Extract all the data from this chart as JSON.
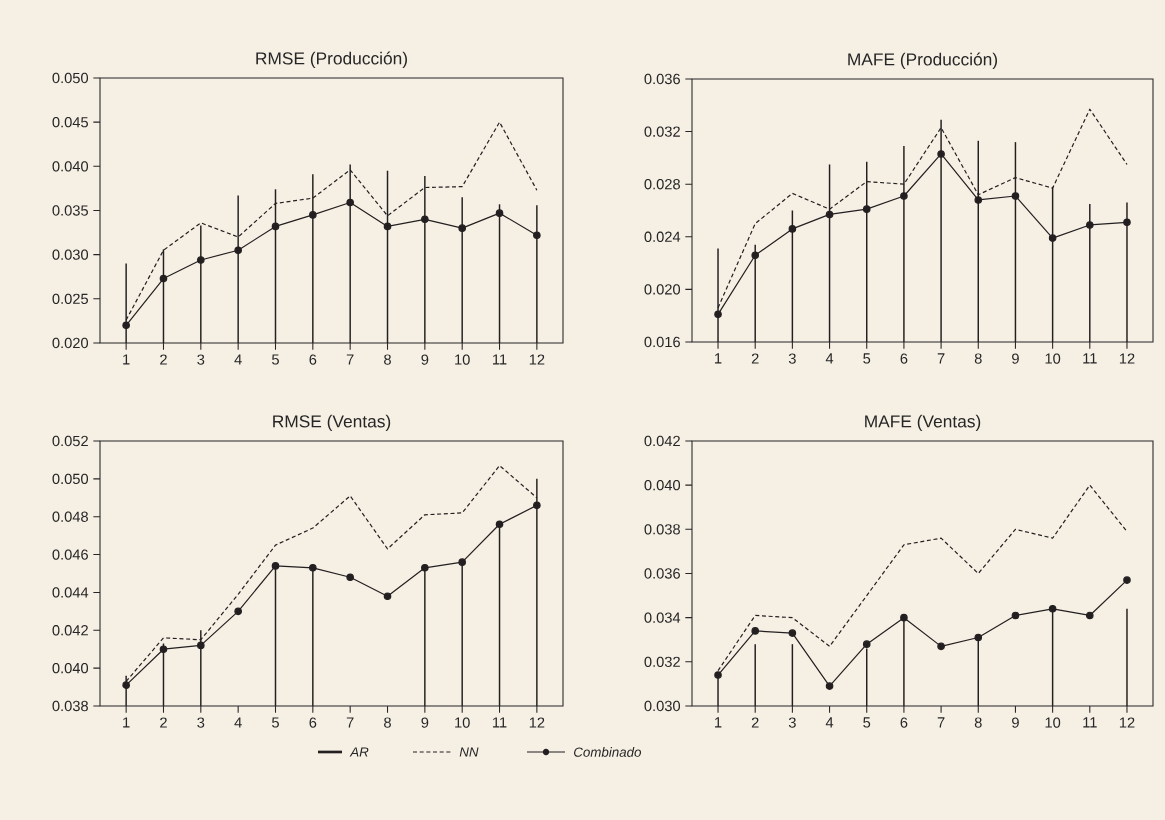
{
  "chart_data": [
    {
      "type": "line",
      "title": "RMSE (Producción)",
      "categories": [
        "1",
        "2",
        "3",
        "4",
        "5",
        "6",
        "7",
        "8",
        "9",
        "10",
        "11",
        "12"
      ],
      "ylim": [
        0.02,
        0.05
      ],
      "yticks": [
        {
          "value": 0.02,
          "label": "0.020"
        },
        {
          "value": 0.025,
          "label": "0.025"
        },
        {
          "value": 0.03,
          "label": "0.030"
        },
        {
          "value": 0.035,
          "label": "0.035"
        },
        {
          "value": 0.04,
          "label": "0.040"
        },
        {
          "value": 0.045,
          "label": "0.045"
        },
        {
          "value": 0.05,
          "label": "0.050"
        }
      ],
      "legend": "bottom",
      "series": [
        {
          "name": "AR",
          "type": "bar",
          "color": "#231f20",
          "values": [
            0.029,
            0.0306,
            0.0333,
            0.0367,
            0.0374,
            0.0391,
            0.0402,
            0.0395,
            0.0389,
            0.0365,
            0.0357,
            0.0356
          ]
        },
        {
          "name": "NN",
          "line_style": "dashed",
          "color": "#231f20",
          "values": [
            0.0226,
            0.0305,
            0.0336,
            0.032,
            0.0358,
            0.0364,
            0.0396,
            0.0344,
            0.0376,
            0.0377,
            0.045,
            0.0373
          ]
        },
        {
          "name": "Combinado",
          "marker": "circle",
          "color": "#231f20",
          "values": [
            0.022,
            0.0273,
            0.0294,
            0.0305,
            0.0332,
            0.0345,
            0.0359,
            0.0332,
            0.034,
            0.033,
            0.0347,
            0.0322
          ]
        }
      ]
    },
    {
      "type": "line",
      "title": "MAFE (Producción)",
      "categories": [
        "1",
        "2",
        "3",
        "4",
        "5",
        "6",
        "7",
        "8",
        "9",
        "10",
        "11",
        "12"
      ],
      "ylim": [
        0.016,
        0.036
      ],
      "yticks": [
        0.016,
        {
          "value": 0.02,
          "label": "0.020"
        },
        0.024,
        0.028,
        0.032,
        0.036
      ],
      "series": [
        {
          "type": "bar",
          "color": "#231f20",
          "values": [
            0.0231,
            0.0234,
            0.026,
            0.0295,
            0.0297,
            0.0309,
            0.0329,
            0.0313,
            0.0312,
            0.0278,
            0.0265,
            0.0266
          ]
        },
        {
          "line_style": "dashed",
          "color": "#231f20",
          "values": [
            0.0186,
            0.025,
            0.0273,
            0.0261,
            0.0282,
            0.028,
            0.0323,
            0.0272,
            0.0285,
            0.0277,
            0.0337,
            0.0295
          ]
        },
        {
          "marker": "circle",
          "color": "#231f20",
          "values": [
            0.0181,
            0.0226,
            0.0246,
            0.0257,
            0.0261,
            0.0271,
            0.0303,
            0.0268,
            0.0271,
            0.0239,
            0.0249,
            0.0251
          ]
        }
      ]
    },
    {
      "type": "line",
      "title": "RMSE  (Ventas)",
      "categories": [
        "1",
        "2",
        "3",
        "4",
        "5",
        "6",
        "7",
        "8",
        "9",
        "10",
        "11",
        "12"
      ],
      "ylim": [
        0.038,
        0.052
      ],
      "yticks": [
        0.038,
        {
          "value": 0.04,
          "label": "0.040"
        },
        0.042,
        0.044,
        0.046,
        0.048,
        {
          "value": 0.05,
          "label": "0.050"
        },
        0.052
      ],
      "series": [
        {
          "type": "bar",
          "color": "#231f20",
          "values": [
            0.0396,
            0.0413,
            0.042,
            null,
            0.0454,
            0.0453,
            null,
            null,
            0.0453,
            0.0456,
            0.0476,
            0.05
          ]
        },
        {
          "line_style": "dashed",
          "color": "#231f20",
          "values": [
            0.0393,
            0.0416,
            0.0415,
            0.0439,
            0.0465,
            0.0474,
            0.0491,
            0.0463,
            0.0481,
            0.0482,
            0.0507,
            0.049
          ]
        },
        {
          "marker": "circle",
          "color": "#231f20",
          "values": [
            0.0391,
            0.041,
            0.0412,
            0.043,
            0.0454,
            0.0453,
            0.0448,
            0.0438,
            0.0453,
            0.0456,
            0.0476,
            0.0486
          ]
        }
      ]
    },
    {
      "type": "line",
      "title": "MAFE (Ventas)",
      "categories": [
        "1",
        "2",
        "3",
        "4",
        "5",
        "6",
        "7",
        "8",
        "9",
        "10",
        "11",
        "12"
      ],
      "ylim": [
        0.03,
        0.042
      ],
      "yticks": [
        {
          "value": 0.03,
          "label": "0.030"
        },
        0.032,
        0.034,
        0.036,
        0.038,
        {
          "value": 0.04,
          "label": "0.040"
        },
        0.042
      ],
      "series": [
        {
          "type": "bar",
          "color": "#231f20",
          "values": [
            0.0314,
            0.0328,
            0.0328,
            null,
            0.0326,
            0.034,
            null,
            0.0331,
            null,
            0.0344,
            null,
            0.0344
          ]
        },
        {
          "line_style": "dashed",
          "color": "#231f20",
          "values": [
            0.0316,
            0.0341,
            0.034,
            0.0327,
            0.035,
            0.0373,
            0.0376,
            0.036,
            0.038,
            0.0376,
            0.04,
            0.0379
          ]
        },
        {
          "marker": "circle",
          "color": "#231f20",
          "values": [
            0.0314,
            0.0334,
            0.0333,
            0.0309,
            0.0328,
            0.034,
            0.0327,
            0.0331,
            0.0341,
            0.0344,
            0.0341,
            0.0357
          ]
        }
      ]
    }
  ]
}
